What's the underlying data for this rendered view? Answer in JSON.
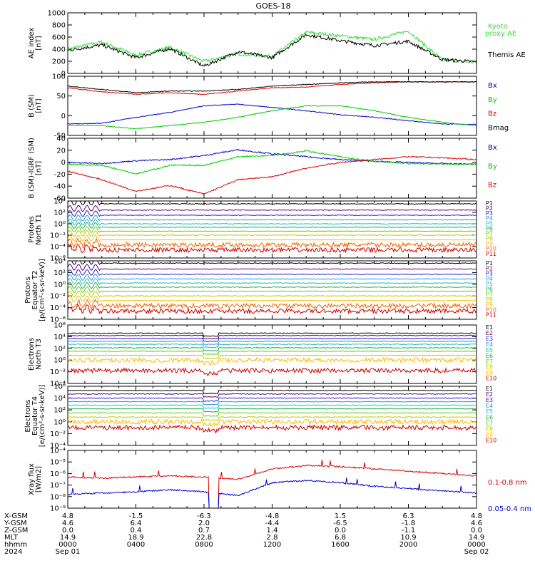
{
  "title": "GOES-18",
  "colors": {
    "black": "#000000",
    "blue": "#0000cc",
    "green": "#00cc00",
    "red": "#dd0000",
    "ae_green": "#33dd33"
  },
  "panels": [
    {
      "id": "ae",
      "ylabel": [
        "AE index",
        "[nT]"
      ],
      "yticks": [
        "0",
        "200",
        "400",
        "600",
        "800",
        "1000"
      ],
      "ylim": [
        0,
        1000
      ],
      "legend": [
        {
          "text": "Kyoto",
          "color": "#33dd33"
        },
        {
          "text": "proxy AE",
          "color": "#33dd33"
        },
        {
          "text": "Themis AE",
          "color": "#000000"
        }
      ]
    },
    {
      "id": "bsm",
      "ylabel": [
        "B (SM)",
        "[nT]"
      ],
      "yticks": [
        "-50",
        "0",
        "50",
        "100"
      ],
      "ylim": [
        -55,
        125
      ],
      "legend": [
        {
          "text": "Bx",
          "color": "#0000cc"
        },
        {
          "text": "By",
          "color": "#00cc00"
        },
        {
          "text": "Bz",
          "color": "#dd0000"
        },
        {
          "text": "Bmag",
          "color": "#000000"
        }
      ]
    },
    {
      "id": "bdiff",
      "ylabel": [
        "B (SM)-IGRF (SM)",
        "[nT]"
      ],
      "yticks": [
        "-60",
        "-40",
        "-20",
        "0",
        "20",
        "40"
      ],
      "ylim": [
        -62,
        42
      ],
      "legend": [
        {
          "text": "Bx",
          "color": "#0000cc"
        },
        {
          "text": "By",
          "color": "#00cc00"
        },
        {
          "text": "Bz",
          "color": "#dd0000"
        }
      ]
    },
    {
      "id": "p1",
      "ylabel": [
        "Protons",
        "North T1"
      ],
      "yticks": [
        "10⁻⁶",
        "10⁻⁴",
        "10⁻²",
        "10⁰",
        "10²",
        "10⁴"
      ],
      "legend": [
        "P1",
        "P2",
        "P3",
        "P4",
        "P5",
        "P6",
        "P7",
        "P8",
        "P9",
        "P10",
        "P11"
      ]
    },
    {
      "id": "p2",
      "ylabel": [
        "Protons",
        "Equator T2",
        "[p/(cm²-s-sr-keV)]"
      ],
      "yticks": [
        "10⁻⁶",
        "10⁻⁴",
        "10⁻²",
        "10⁰",
        "10²",
        "10⁴"
      ],
      "legend": [
        "P1",
        "P2",
        "P3",
        "P4",
        "P5",
        "P6",
        "P7",
        "P8",
        "P9",
        "P10",
        "P11"
      ]
    },
    {
      "id": "e1",
      "ylabel": [
        "Electrons",
        "North T3"
      ],
      "yticks": [
        "10⁻⁴",
        "10⁻²",
        "10⁰",
        "10²",
        "10⁴",
        "10⁶"
      ],
      "legend": [
        "E1",
        "E2",
        "E3",
        "E4",
        "E5",
        "E6",
        "E7",
        "E8",
        "E9",
        "E10"
      ]
    },
    {
      "id": "e2",
      "ylabel": [
        "Electrons",
        "Equator T4",
        "[e/(cm²-s-sr-keV)]"
      ],
      "yticks": [
        "10⁻⁴",
        "10⁻²",
        "10⁰",
        "10²",
        "10⁴",
        "10⁶"
      ],
      "legend": [
        "E1",
        "E2",
        "E3",
        "E4",
        "E5",
        "E6",
        "E7",
        "E8",
        "E9",
        "E10"
      ]
    },
    {
      "id": "xray",
      "ylabel": [
        "Xray flux",
        "[W/m2]"
      ],
      "yticks": [
        "10⁻⁹",
        "10⁻⁸",
        "10⁻⁷",
        "10⁻⁶",
        "10⁻⁵",
        "10⁻⁴"
      ],
      "legend": [
        {
          "text": "0.1-0.8 nm",
          "color": "#dd0000"
        },
        {
          "text": "0.05-0.4 nm",
          "color": "#0000cc"
        }
      ]
    }
  ],
  "channel_colors_p": [
    "#000000",
    "#660066",
    "#2222cc",
    "#2299dd",
    "#22bbbb",
    "#22aa55",
    "#66cc00",
    "#bbcc00",
    "#ffbb00",
    "#ee6600",
    "#cc0000"
  ],
  "channel_colors_e": [
    "#000000",
    "#660066",
    "#2222cc",
    "#2299dd",
    "#22bbbb",
    "#22aa55",
    "#66cc00",
    "#bbcc00",
    "#ffbb00",
    "#cc0000"
  ],
  "footer": {
    "row_labels": [
      "X-GSM",
      "Y-GSM",
      "Z-GSM",
      "MLT",
      "hhmm",
      "2024"
    ],
    "columns": [
      [
        "4.8",
        "4.6",
        "0.0",
        "14.9",
        "0000",
        "Sep 01"
      ],
      [
        "-1.5",
        "6.4",
        "0.4",
        "18.9",
        "0400",
        ""
      ],
      [
        "-6.3",
        "2.0",
        "0.7",
        "22.8",
        "0800",
        ""
      ],
      [
        "-4.8",
        "-4.4",
        "1.4",
        "2.8",
        "1200",
        ""
      ],
      [
        "1.5",
        "-6.5",
        "0.0",
        "6.8",
        "1600",
        ""
      ],
      [
        "6.3",
        "-1.8",
        "-1.1",
        "10.9",
        "2000",
        ""
      ],
      [
        "4.8",
        "4.6",
        "0.0",
        "14.9",
        "0000",
        "Sep 02"
      ]
    ]
  },
  "chart_data": [
    {
      "type": "line",
      "title": "GOES-18",
      "ylabel": "AE index [nT]",
      "ylim": [
        0,
        1000
      ],
      "x": [
        "0000",
        "0200",
        "0400",
        "0600",
        "0800",
        "1000",
        "1200",
        "1400",
        "1600",
        "1800",
        "2000",
        "2200",
        "0000"
      ],
      "series": [
        {
          "name": "Kyoto proxy AE",
          "values": [
            400,
            520,
            300,
            430,
            200,
            320,
            280,
            680,
            620,
            560,
            700,
            220,
            180
          ]
        },
        {
          "name": "Themis AE",
          "values": [
            380,
            470,
            260,
            410,
            120,
            360,
            260,
            640,
            540,
            460,
            530,
            230,
            190
          ]
        }
      ]
    },
    {
      "type": "line",
      "ylabel": "B (SM) [nT]",
      "ylim": [
        -55,
        125
      ],
      "x": [
        "0000",
        "0200",
        "0400",
        "0600",
        "0800",
        "1000",
        "1200",
        "1400",
        "1600",
        "1800",
        "2000",
        "2200",
        "0000"
      ],
      "series": [
        {
          "name": "Bx",
          "values": [
            -20,
            -18,
            0,
            15,
            35,
            40,
            30,
            20,
            8,
            0,
            -10,
            -20,
            -22
          ]
        },
        {
          "name": "By",
          "values": [
            -25,
            -25,
            -35,
            -25,
            -15,
            0,
            20,
            35,
            35,
            20,
            0,
            -15,
            -25
          ]
        },
        {
          "name": "Bz",
          "values": [
            90,
            78,
            70,
            75,
            70,
            80,
            90,
            92,
            100,
            105,
            108,
            108,
            108
          ]
        },
        {
          "name": "Bmag",
          "values": [
            95,
            85,
            75,
            80,
            80,
            85,
            95,
            100,
            105,
            108,
            108,
            108,
            108
          ]
        }
      ]
    },
    {
      "type": "line",
      "ylabel": "B (SM)-IGRF (SM) [nT]",
      "ylim": [
        -62,
        42
      ],
      "x": [
        "0000",
        "0200",
        "0400",
        "0600",
        "0800",
        "1000",
        "1200",
        "1400",
        "1600",
        "1800",
        "2000",
        "2200",
        "0000"
      ],
      "series": [
        {
          "name": "Bx",
          "values": [
            0,
            -2,
            3,
            5,
            12,
            22,
            15,
            10,
            5,
            2,
            0,
            -2,
            -3
          ]
        },
        {
          "name": "By",
          "values": [
            -3,
            -5,
            -20,
            -5,
            -5,
            10,
            12,
            20,
            10,
            2,
            -2,
            -3,
            -3
          ]
        },
        {
          "name": "Bz",
          "values": [
            -15,
            -30,
            -50,
            -40,
            -55,
            -30,
            -25,
            -10,
            0,
            5,
            10,
            8,
            5
          ]
        }
      ]
    },
    {
      "type": "line",
      "ylabel": "Protons North T1",
      "yscale": "log",
      "series_names": [
        "P1",
        "P2",
        "P3",
        "P4",
        "P5",
        "P6",
        "P7",
        "P8",
        "P9",
        "P10",
        "P11"
      ],
      "levels_log10": [
        3.5,
        2.4,
        1.5,
        0.7,
        0.0,
        -0.6,
        -1.3,
        -2.0,
        -2.8,
        -3.7,
        -4.6
      ]
    },
    {
      "type": "line",
      "ylabel": "Protons Equator T2 [p/(cm2-s-sr-keV)]",
      "yscale": "log",
      "series_names": [
        "P1",
        "P2",
        "P3",
        "P4",
        "P5",
        "P6",
        "P7",
        "P8",
        "P9",
        "P10",
        "P11"
      ],
      "levels_log10": [
        3.6,
        2.6,
        1.7,
        0.9,
        0.2,
        -0.5,
        -1.2,
        -2.0,
        -2.8,
        -3.7,
        -4.6
      ]
    },
    {
      "type": "line",
      "ylabel": "Electrons North T3",
      "yscale": "log",
      "series_names": [
        "E1",
        "E2",
        "E3",
        "E4",
        "E5",
        "E6",
        "E7",
        "E8",
        "E9",
        "E10"
      ],
      "levels_log10": [
        4.6,
        4.2,
        3.7,
        3.2,
        2.7,
        2.1,
        1.5,
        0.8,
        0.0,
        -1.8
      ]
    },
    {
      "type": "line",
      "ylabel": "Electrons Equator T4 [e/(cm2-s-sr-keV)]",
      "yscale": "log",
      "series_names": [
        "E1",
        "E2",
        "E3",
        "E4",
        "E5",
        "E6",
        "E7",
        "E8",
        "E9",
        "E10"
      ],
      "levels_log10": [
        5.3,
        4.7,
        4.0,
        3.4,
        2.8,
        2.2,
        1.5,
        0.8,
        0.0,
        -1.0
      ]
    },
    {
      "type": "line",
      "ylabel": "Xray flux [W/m2]",
      "yscale": "log",
      "ylim": [
        1e-09,
        0.0001
      ],
      "x": [
        "0000",
        "0200",
        "0400",
        "0600",
        "0800",
        "1000",
        "1200",
        "1400",
        "1600",
        "1800",
        "2000",
        "2200",
        "0000"
      ],
      "series": [
        {
          "name": "0.1-0.8 nm",
          "values_log10": [
            -6.3,
            -6.4,
            -6.3,
            -6.2,
            -6.3,
            -6.5,
            -5.6,
            -5.3,
            -5.4,
            -5.6,
            -5.8,
            -6.0,
            -6.2
          ]
        },
        {
          "name": "0.05-0.4 nm",
          "values_log10": [
            -7.8,
            -7.7,
            -7.6,
            -7.4,
            -7.6,
            -7.9,
            -6.8,
            -6.6,
            -6.8,
            -7.1,
            -7.3,
            -7.5,
            -7.7
          ]
        }
      ]
    }
  ]
}
